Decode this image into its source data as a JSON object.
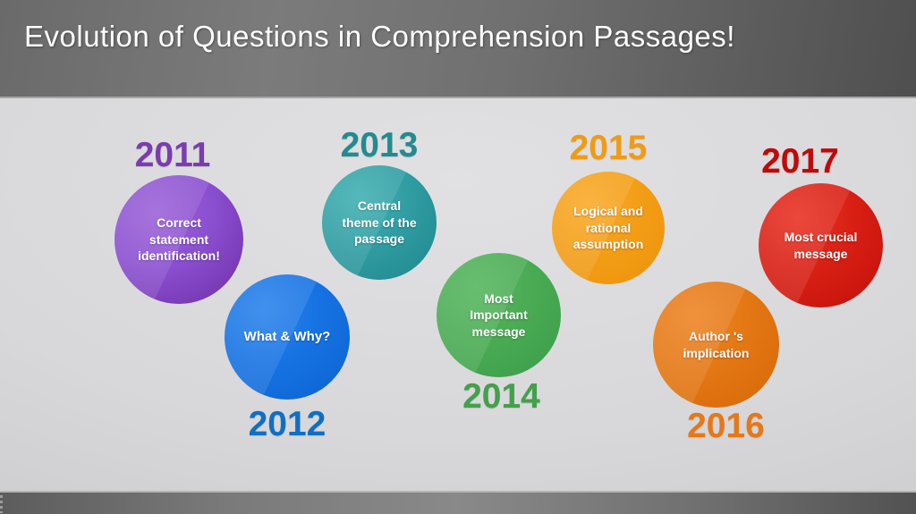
{
  "slide": {
    "title": "Evolution of Questions in Comprehension Passages!",
    "title_color": "#ffffff",
    "header_color": "#6e6e6e",
    "footer_color": "#6e6e6e",
    "body_color": "#d8d8da"
  },
  "timeline": {
    "items": [
      {
        "year": "2011",
        "topic": "Correct\nstatement\nidentification!",
        "year_position": "above",
        "accent_color": "#7b3cb0",
        "bubble_color": "#8a4fd0"
      },
      {
        "year": "2012",
        "topic": "What & Why?",
        "year_position": "below",
        "accent_color": "#0f6fc5",
        "bubble_color": "#1672e2"
      },
      {
        "year": "2013",
        "topic": "Central\ntheme of the\npassage",
        "year_position": "above",
        "accent_color": "#238b8f",
        "bubble_color": "#2f9da2"
      },
      {
        "year": "2014",
        "topic": "Most\nImportant\nmessage",
        "year_position": "below",
        "accent_color": "#43a04b",
        "bubble_color": "#4aab54"
      },
      {
        "year": "2015",
        "topic": "Logical and\nrational\nassumption",
        "year_position": "above",
        "accent_color": "#f09b14",
        "bubble_color": "#f39e17"
      },
      {
        "year": "2016",
        "topic": "Author 's\nimplication",
        "year_position": "below",
        "accent_color": "#e67817",
        "bubble_color": "#e37713"
      },
      {
        "year": "2017",
        "topic": "Most crucial\nmessage",
        "year_position": "above",
        "accent_color": "#c00909",
        "bubble_color": "#d81f14"
      }
    ]
  }
}
